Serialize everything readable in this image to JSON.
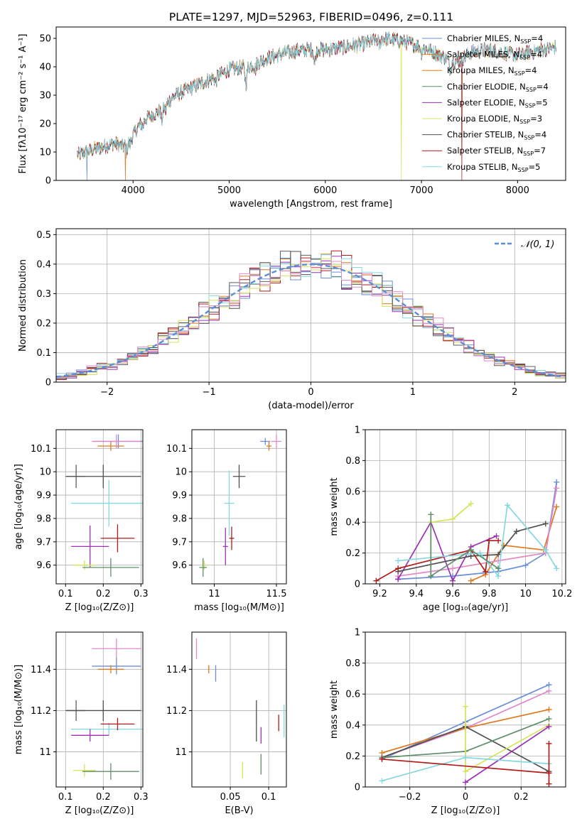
{
  "figure_title": "PLATE=1297, MJD=52963, FIBERID=0496, z=0.111",
  "colors": [
    "#6a8fd8",
    "#e07a21",
    "#98c9a0",
    "#5e5e5e",
    "#9b30b3",
    "#d4e35a",
    "#4f4f4f",
    "#b31b1b",
    "#86d8e0",
    "#e389c8",
    "#5f8f6a"
  ],
  "chart_data": [
    {
      "id": "spectrum",
      "type": "line",
      "title": "PLATE=1297, MJD=52963, FIBERID=0496, z=0.111",
      "xlabel": "wavelength [Angstrom, rest frame]",
      "ylabel": "Flux [fλ10⁻¹⁷ erg cm⁻² s⁻¹ A⁻¹]",
      "xlim": [
        3200,
        8500
      ],
      "ylim": [
        0,
        54
      ],
      "xticks": [
        4000,
        5000,
        6000,
        7000,
        8000
      ],
      "yticks": [
        0,
        10,
        20,
        30,
        40,
        50
      ],
      "grid": false,
      "legend": "upper right",
      "continuum": [
        [
          3420,
          9
        ],
        [
          3600,
          11
        ],
        [
          3800,
          13
        ],
        [
          3900,
          12
        ],
        [
          4000,
          16
        ],
        [
          4100,
          21
        ],
        [
          4200,
          23
        ],
        [
          4300,
          25
        ],
        [
          4400,
          29
        ],
        [
          4500,
          31
        ],
        [
          4700,
          34
        ],
        [
          4900,
          37
        ],
        [
          5000,
          39
        ],
        [
          5200,
          40
        ],
        [
          5400,
          43
        ],
        [
          5600,
          45
        ],
        [
          5800,
          46
        ],
        [
          6000,
          46
        ],
        [
          6200,
          47
        ],
        [
          6400,
          48
        ],
        [
          6600,
          50
        ],
        [
          6800,
          49
        ],
        [
          7000,
          47
        ],
        [
          7200,
          44
        ],
        [
          7300,
          42
        ],
        [
          7400,
          42
        ],
        [
          7500,
          45
        ],
        [
          7700,
          46
        ],
        [
          8000,
          44
        ],
        [
          8250,
          46
        ],
        [
          8400,
          47
        ]
      ],
      "absorption": [
        [
          3933,
          -3.0
        ],
        [
          3968,
          -2.5
        ],
        [
          4102,
          -2.0
        ],
        [
          4300,
          -4.0
        ],
        [
          4340,
          -2.0
        ],
        [
          4861,
          -2.0
        ],
        [
          5175,
          -6.0
        ],
        [
          5270,
          -2.0
        ],
        [
          5890,
          -5.0
        ],
        [
          6563,
          -2.5
        ],
        [
          7000,
          -2.0
        ],
        [
          7300,
          -3.0
        ]
      ],
      "drops": [
        [
          3520,
          0
        ],
        [
          3920,
          1
        ],
        [
          6790,
          5
        ],
        [
          7420,
          7
        ]
      ],
      "series": [
        {
          "name": "Chabrier MILES, N",
          "sub": "SSP",
          "tail": "=4"
        },
        {
          "name": "Salpeter MILES, N",
          "sub": "SSP",
          "tail": "=4"
        },
        {
          "name": "Kroupa MILES, N",
          "sub": "SSP",
          "tail": "=4"
        },
        {
          "name": "Chabrier ELODIE, N",
          "sub": "SSP",
          "tail": "=4"
        },
        {
          "name": "Salpeter ELODIE, N",
          "sub": "SSP",
          "tail": "=5"
        },
        {
          "name": "Kroupa ELODIE, N",
          "sub": "SSP",
          "tail": "=3"
        },
        {
          "name": "Chabrier STELIB, N",
          "sub": "SSP",
          "tail": "=4"
        },
        {
          "name": "Salpeter STELIB, N",
          "sub": "SSP",
          "tail": "=7"
        },
        {
          "name": "Kroupa STELIB, N",
          "sub": "SSP",
          "tail": "=5"
        }
      ]
    },
    {
      "id": "histogram",
      "type": "bar",
      "xlabel": "(data-model)/error",
      "ylabel": "Normed distribution",
      "xlim": [
        -2.5,
        2.5
      ],
      "ylim": [
        0,
        0.52
      ],
      "xticks": [
        -2,
        -1,
        0,
        1,
        2
      ],
      "yticks": [
        0.0,
        0.1,
        0.2,
        0.3,
        0.4,
        0.5
      ],
      "grid": true,
      "legend": "upper right",
      "legend_label": "𝒩(0, 1)",
      "bin_width": 0.1,
      "n_series": 9
    },
    {
      "id": "age-z",
      "type": "scatter",
      "xlabel": "Z [log₁₀(Z/Z⊙)]",
      "ylabel": "age  [log₁₀(age/yr)]",
      "xlim": [
        0.075,
        0.305
      ],
      "ylim": [
        9.52,
        10.18
      ],
      "xticks": [
        0.1,
        0.2,
        0.3
      ],
      "yticks": [
        9.6,
        9.7,
        9.8,
        9.9,
        10.0,
        10.1
      ],
      "grid": true,
      "points": [
        {
          "x": 0.24,
          "xerr": 0.065,
          "y": 10.13,
          "yerr": 0.03,
          "c": 0
        },
        {
          "x": 0.22,
          "xerr": 0.035,
          "y": 10.11,
          "yerr": 0.02,
          "c": 1
        },
        {
          "x": 0.235,
          "xerr": 0.065,
          "y": 10.13,
          "yerr": 0.03,
          "c": 9
        },
        {
          "x": 0.128,
          "xerr": 0.025,
          "y": 9.98,
          "yerr": 0.05,
          "c": 3
        },
        {
          "x": 0.2,
          "xerr": 0.1,
          "y": 9.98,
          "yerr": 0.05,
          "c": 6
        },
        {
          "x": 0.215,
          "xerr": 0.1,
          "y": 9.865,
          "yerr": 0.1,
          "c": 8
        },
        {
          "x": 0.238,
          "xerr": 0.045,
          "y": 9.715,
          "yerr": 0.06,
          "c": 7
        },
        {
          "x": 0.165,
          "xerr": 0.05,
          "y": 9.68,
          "yerr": 0.09,
          "c": 4
        },
        {
          "x": 0.15,
          "xerr": 0.03,
          "y": 9.6,
          "yerr": 0.02,
          "c": 5
        },
        {
          "x": 0.22,
          "xerr": 0.075,
          "y": 9.59,
          "yerr": 0.04,
          "c": 10
        }
      ]
    },
    {
      "id": "age-mass",
      "type": "scatter",
      "xlabel": "mass [log₁₀(M/M⊙)]",
      "ylabel": "",
      "xlim": [
        10.82,
        11.58
      ],
      "ylim": [
        9.52,
        10.18
      ],
      "xticks": [
        11.0,
        11.5
      ],
      "yticks": [
        9.6,
        9.7,
        9.8,
        9.9,
        10.0,
        10.1
      ],
      "grid": true,
      "points": [
        {
          "x": 11.41,
          "xerr": 0.04,
          "y": 10.13,
          "yerr": 0.015,
          "c": 0
        },
        {
          "x": 11.44,
          "xerr": 0.02,
          "y": 10.11,
          "yerr": 0.02,
          "c": 1
        },
        {
          "x": 11.5,
          "xerr": 0.04,
          "y": 10.13,
          "yerr": 0.03,
          "c": 9
        },
        {
          "x": 11.2,
          "xerr": 0.05,
          "y": 9.98,
          "yerr": 0.05,
          "c": 6
        },
        {
          "x": 11.12,
          "xerr": 0.04,
          "y": 9.865,
          "yerr": 0.14,
          "c": 8
        },
        {
          "x": 11.14,
          "xerr": 0.02,
          "y": 9.715,
          "yerr": 0.05,
          "c": 7
        },
        {
          "x": 11.09,
          "xerr": 0.02,
          "y": 9.68,
          "yerr": 0.08,
          "c": 4
        },
        {
          "x": 10.92,
          "xerr": 0.02,
          "y": 9.6,
          "yerr": 0.02,
          "c": 5
        },
        {
          "x": 10.91,
          "xerr": 0.03,
          "y": 9.59,
          "yerr": 0.04,
          "c": 10
        }
      ]
    },
    {
      "id": "mass-weight-age",
      "type": "line",
      "xlabel": "age  [log₁₀(age/yr)]",
      "ylabel": "mass weight",
      "xlim": [
        9.12,
        10.22
      ],
      "ylim": [
        0,
        1.0
      ],
      "xticks": [
        9.2,
        9.4,
        9.6,
        9.8,
        10.0,
        10.2
      ],
      "yticks": [
        0.0,
        0.2,
        0.4,
        0.6,
        0.8,
        1.0
      ],
      "grid": true,
      "lines": [
        {
          "c": 0,
          "pts": [
            [
              9.3,
              0.03
            ],
            [
              9.6,
              0.05
            ],
            [
              9.85,
              0.08
            ],
            [
              10.0,
              0.12
            ],
            [
              10.11,
              0.2
            ],
            [
              10.17,
              0.66
            ]
          ]
        },
        {
          "c": 1,
          "pts": [
            [
              9.7,
              0.02
            ],
            [
              9.78,
              0.06
            ],
            [
              9.88,
              0.25
            ],
            [
              10.1,
              0.22
            ],
            [
              10.17,
              0.5
            ]
          ]
        },
        {
          "c": 9,
          "pts": [
            [
              9.3,
              0.05
            ],
            [
              9.6,
              0.1
            ],
            [
              9.85,
              0.15
            ],
            [
              10.11,
              0.2
            ],
            [
              10.17,
              0.62
            ]
          ]
        },
        {
          "c": 4,
          "pts": [
            [
              9.3,
              0.03
            ],
            [
              9.48,
              0.4
            ],
            [
              9.6,
              0.02
            ],
            [
              9.7,
              0.24
            ],
            [
              9.84,
              0.31
            ]
          ]
        },
        {
          "c": 5,
          "pts": [
            [
              9.48,
              0.05
            ],
            [
              9.48,
              0.4
            ],
            [
              9.6,
              0.42
            ],
            [
              9.7,
              0.52
            ]
          ]
        },
        {
          "c": 6,
          "pts": [
            [
              9.3,
              0.08
            ],
            [
              9.7,
              0.18
            ],
            [
              9.85,
              0.19
            ],
            [
              9.95,
              0.34
            ],
            [
              10.11,
              0.39
            ]
          ]
        },
        {
          "c": 7,
          "pts": [
            [
              9.18,
              0.02
            ],
            [
              9.3,
              0.1
            ],
            [
              9.7,
              0.22
            ],
            [
              9.78,
              0.08
            ],
            [
              9.8,
              0.28
            ],
            [
              9.85,
              0.28
            ]
          ]
        },
        {
          "c": 8,
          "pts": [
            [
              9.3,
              0.15
            ],
            [
              9.75,
              0.2
            ],
            [
              9.85,
              0.05
            ],
            [
              9.9,
              0.51
            ],
            [
              10.11,
              0.22
            ],
            [
              10.17,
              0.1
            ]
          ]
        },
        {
          "c": 10,
          "pts": [
            [
              9.48,
              0.45
            ],
            [
              9.48,
              0.05
            ],
            [
              9.7,
              0.22
            ],
            [
              9.85,
              0.1
            ]
          ]
        }
      ]
    },
    {
      "id": "mass-z",
      "type": "scatter",
      "xlabel": "Z [log₁₀(Z/Z⊙)]",
      "ylabel": "mass [log₁₀(M/M⊙)]",
      "xlim": [
        0.075,
        0.305
      ],
      "ylim": [
        10.83,
        11.58
      ],
      "xticks": [
        0.1,
        0.2,
        0.3
      ],
      "yticks": [
        11.0,
        11.2,
        11.4
      ],
      "grid": true,
      "points": [
        {
          "x": 0.235,
          "xerr": 0.065,
          "y": 11.5,
          "yerr": 0.05,
          "c": 9
        },
        {
          "x": 0.235,
          "xerr": 0.065,
          "y": 11.415,
          "yerr": 0.04,
          "c": 0
        },
        {
          "x": 0.22,
          "xerr": 0.035,
          "y": 11.4,
          "yerr": 0.02,
          "c": 1
        },
        {
          "x": 0.128,
          "xerr": 0.025,
          "y": 11.2,
          "yerr": 0.05,
          "c": 3
        },
        {
          "x": 0.2,
          "xerr": 0.1,
          "y": 11.2,
          "yerr": 0.05,
          "c": 6
        },
        {
          "x": 0.215,
          "xerr": 0.1,
          "y": 11.11,
          "yerr": 0.03,
          "c": 8
        },
        {
          "x": 0.238,
          "xerr": 0.045,
          "y": 11.135,
          "yerr": 0.03,
          "c": 7
        },
        {
          "x": 0.165,
          "xerr": 0.05,
          "y": 11.08,
          "yerr": 0.03,
          "c": 4
        },
        {
          "x": 0.15,
          "xerr": 0.03,
          "y": 10.91,
          "yerr": 0.03,
          "c": 5
        },
        {
          "x": 0.22,
          "xerr": 0.075,
          "y": 10.905,
          "yerr": 0.04,
          "c": 10
        }
      ]
    },
    {
      "id": "mass-ebv",
      "type": "scatter",
      "xlabel": "E(B-V)",
      "ylabel": "",
      "xlim": [
        0.0,
        0.123
      ],
      "ylim": [
        10.83,
        11.58
      ],
      "xticks": [
        0.05,
        0.1
      ],
      "yticks": [
        11.0,
        11.2,
        11.4
      ],
      "grid": true,
      "points": [
        {
          "x": 0.006,
          "y": 11.5,
          "yerr": 0.05,
          "c": 9
        },
        {
          "x": 0.022,
          "y": 11.4,
          "yerr": 0.02,
          "c": 1
        },
        {
          "x": 0.031,
          "y": 11.38,
          "yerr": 0.04,
          "c": 0
        },
        {
          "x": 0.084,
          "y": 11.15,
          "yerr": 0.1,
          "c": 6
        },
        {
          "x": 0.113,
          "y": 11.14,
          "yerr": 0.04,
          "c": 7
        },
        {
          "x": 0.12,
          "y": 11.15,
          "yerr": 0.08,
          "c": 8
        },
        {
          "x": 0.09,
          "y": 11.08,
          "yerr": 0.04,
          "c": 4
        },
        {
          "x": 0.066,
          "y": 10.91,
          "yerr": 0.04,
          "c": 5
        },
        {
          "x": 0.09,
          "y": 10.94,
          "yerr": 0.05,
          "c": 10
        }
      ]
    },
    {
      "id": "mass-weight-z",
      "type": "line",
      "xlabel": "Z [log₁₀(Z/Z⊙)]",
      "ylabel": "mass weight",
      "xlim": [
        -0.36,
        0.36
      ],
      "ylim": [
        0,
        1.0
      ],
      "xticks": [
        -0.2,
        0.0,
        0.2
      ],
      "yticks": [
        0.0,
        0.2,
        0.4,
        0.6,
        0.8,
        1.0
      ],
      "grid": true,
      "lines": [
        {
          "c": 0,
          "pts": [
            [
              -0.3,
              0.18
            ],
            [
              0.0,
              0.42
            ],
            [
              0.3,
              0.66
            ]
          ]
        },
        {
          "c": 9,
          "pts": [
            [
              -0.3,
              0.19
            ],
            [
              0.0,
              0.38
            ],
            [
              0.3,
              0.62
            ]
          ]
        },
        {
          "c": 1,
          "pts": [
            [
              -0.3,
              0.22
            ],
            [
              0.0,
              0.38
            ],
            [
              0.3,
              0.5
            ]
          ]
        },
        {
          "c": 6,
          "pts": [
            [
              -0.3,
              0.19
            ],
            [
              0.0,
              0.39
            ],
            [
              0.3,
              0.1
            ]
          ]
        },
        {
          "c": 10,
          "pts": [
            [
              -0.3,
              0.19
            ],
            [
              0.0,
              0.23
            ],
            [
              0.3,
              0.44
            ]
          ]
        },
        {
          "c": 5,
          "pts": [
            [
              0.0,
              0.52
            ],
            [
              0.0,
              0.1
            ],
            [
              0.3,
              0.4
            ]
          ]
        },
        {
          "c": 4,
          "pts": [
            [
              0.0,
              0.03
            ],
            [
              0.3,
              0.39
            ]
          ]
        },
        {
          "c": 8,
          "pts": [
            [
              -0.3,
              0.04
            ],
            [
              0.0,
              0.19
            ],
            [
              0.3,
              0.15
            ]
          ]
        },
        {
          "c": 7,
          "pts": [
            [
              -0.3,
              0.18
            ],
            [
              0.3,
              0.09
            ]
          ]
        },
        {
          "c": 7,
          "pts": [
            [
              0.3,
              0.02
            ],
            [
              0.3,
              0.28
            ]
          ]
        }
      ]
    }
  ]
}
